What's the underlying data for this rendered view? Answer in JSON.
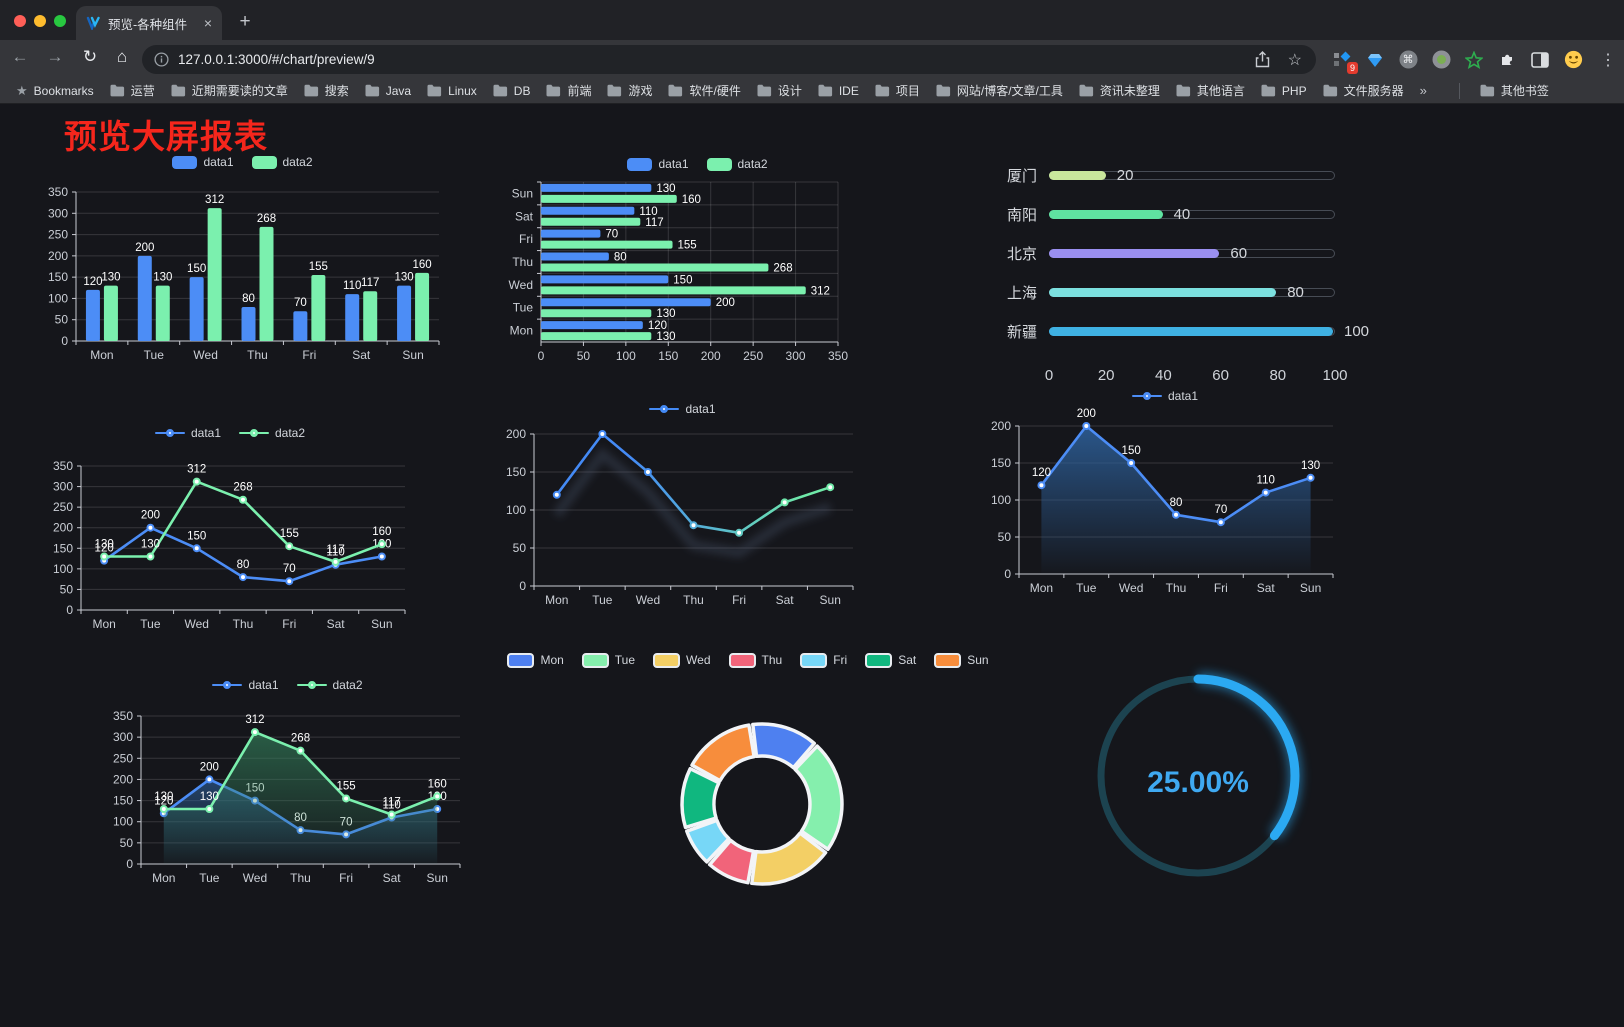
{
  "browser": {
    "tab": {
      "title": "预览-各种组件",
      "close": "×",
      "new_tab": "+"
    },
    "url": "127.0.0.1:3000/#/chart/preview/9",
    "icons": {
      "back": "←",
      "forward": "→",
      "reload": "↻",
      "home": "⌂",
      "star": "☆",
      "menu": "⋮",
      "cmd": "⌘"
    },
    "extension_badge": "9",
    "bookmarks": {
      "label": "Bookmarks",
      "folders": [
        "运营",
        "近期需要读的文章",
        "搜索",
        "Java",
        "Linux",
        "DB",
        "前端",
        "游戏",
        "软件/硬件",
        "设计",
        "IDE",
        "项目",
        "网站/博客/文章/工具",
        "资讯未整理",
        "其他语言",
        "PHP",
        "文件服务器"
      ],
      "overflow": "»",
      "other": "其他书签"
    }
  },
  "page": {
    "title": "预览大屏报表"
  },
  "colors": {
    "data1": "#4C8DF6",
    "data2": "#7BF0AE",
    "title_red": "#F5261C"
  },
  "chart_data": [
    {
      "id": "grouped-bar",
      "type": "bar",
      "categories": [
        "Mon",
        "Tue",
        "Wed",
        "Thu",
        "Fri",
        "Sat",
        "Sun"
      ],
      "series": [
        {
          "name": "data1",
          "color": "#4C8DF6",
          "values": [
            120,
            200,
            150,
            80,
            70,
            110,
            130
          ]
        },
        {
          "name": "data2",
          "color": "#7BF0AE",
          "values": [
            130,
            130,
            312,
            268,
            155,
            117,
            160
          ]
        }
      ],
      "ylim": [
        0,
        350
      ],
      "ystep": 50,
      "legend_position": "top",
      "grid": true
    },
    {
      "id": "horizontal-bar",
      "type": "bar-horizontal",
      "categories": [
        "Mon",
        "Tue",
        "Wed",
        "Thu",
        "Fri",
        "Sat",
        "Sun"
      ],
      "series": [
        {
          "name": "data1",
          "color": "#4C8DF6",
          "values": [
            120,
            200,
            150,
            80,
            70,
            110,
            130
          ]
        },
        {
          "name": "data2",
          "color": "#7BF0AE",
          "values": [
            130,
            130,
            312,
            268,
            155,
            117,
            160
          ]
        }
      ],
      "xlim": [
        0,
        350
      ],
      "xstep": 50,
      "legend_position": "top"
    },
    {
      "id": "city-progress",
      "type": "bar-progress",
      "items": [
        {
          "label": "厦门",
          "value": 20,
          "color": "#C9E79C"
        },
        {
          "label": "南阳",
          "value": 40,
          "color": "#5FE3A1"
        },
        {
          "label": "北京",
          "value": 60,
          "color": "#9A8FF0"
        },
        {
          "label": "上海",
          "value": 80,
          "color": "#7CE0DF"
        },
        {
          "label": "新疆",
          "value": 100,
          "color": "#3FB1E3"
        }
      ],
      "xlim": [
        0,
        100
      ],
      "xticks": [
        0,
        20,
        40,
        60,
        80,
        100
      ]
    },
    {
      "id": "line-dual",
      "type": "line",
      "categories": [
        "Mon",
        "Tue",
        "Wed",
        "Thu",
        "Fri",
        "Sat",
        "Sun"
      ],
      "series": [
        {
          "name": "data1",
          "color": "#4C8DF6",
          "values": [
            120,
            200,
            150,
            80,
            70,
            110,
            130
          ]
        },
        {
          "name": "data2",
          "color": "#7BF0AE",
          "values": [
            130,
            130,
            312,
            268,
            155,
            117,
            160
          ]
        }
      ],
      "ylim": [
        0,
        350
      ],
      "ystep": 50,
      "show_labels": true
    },
    {
      "id": "line-gradient",
      "type": "line",
      "categories": [
        "Mon",
        "Tue",
        "Wed",
        "Thu",
        "Fri",
        "Sat",
        "Sun"
      ],
      "series": [
        {
          "name": "data1",
          "gradient": [
            "#448AF5",
            "#6FE9A8"
          ],
          "values": [
            120,
            200,
            150,
            80,
            70,
            110,
            130
          ]
        }
      ],
      "ylim": [
        0,
        200
      ],
      "ystep": 50,
      "show_labels": false,
      "shadow": true
    },
    {
      "id": "area-single",
      "type": "area",
      "categories": [
        "Mon",
        "Tue",
        "Wed",
        "Thu",
        "Fri",
        "Sat",
        "Sun"
      ],
      "series": [
        {
          "name": "data1",
          "color": "#4C8DF6",
          "area": [
            "rgba(46,98,158,0.85)",
            "rgba(46,98,158,0.02)"
          ],
          "values": [
            120,
            200,
            150,
            80,
            70,
            110,
            130
          ]
        }
      ],
      "ylim": [
        0,
        200
      ],
      "ystep": 50,
      "show_labels": true
    },
    {
      "id": "area-dual",
      "type": "area",
      "categories": [
        "Mon",
        "Tue",
        "Wed",
        "Thu",
        "Fri",
        "Sat",
        "Sun"
      ],
      "series": [
        {
          "name": "data1",
          "color": "#4C8DF6",
          "area": [
            "rgba(46,98,158,0.60)",
            "rgba(46,98,158,0.03)"
          ],
          "values": [
            120,
            200,
            150,
            80,
            70,
            110,
            130
          ]
        },
        {
          "name": "data2",
          "color": "#7BF0AE",
          "area": [
            "rgba(52,130,92,0.65)",
            "rgba(52,130,92,0.03)"
          ],
          "values": [
            130,
            130,
            312,
            268,
            155,
            117,
            160
          ]
        }
      ],
      "ylim": [
        0,
        350
      ],
      "ystep": 50,
      "show_labels": true
    },
    {
      "id": "weekday-donut",
      "type": "pie",
      "labels": [
        "Mon",
        "Tue",
        "Wed",
        "Thu",
        "Fri",
        "Sat",
        "Sun"
      ],
      "values": [
        120,
        200,
        150,
        80,
        70,
        110,
        130
      ],
      "colors": [
        "#4E80F0",
        "#85EFAD",
        "#F3CF65",
        "#F1647A",
        "#77D7F7",
        "#10B77F",
        "#F78D3C"
      ],
      "legend_position": "top"
    },
    {
      "id": "percent-gauge",
      "type": "gauge",
      "value": 25,
      "value_label": "25.00%",
      "color": "#2BA9F2",
      "track_color": "#1C4350",
      "sweep_deg": 128
    }
  ]
}
